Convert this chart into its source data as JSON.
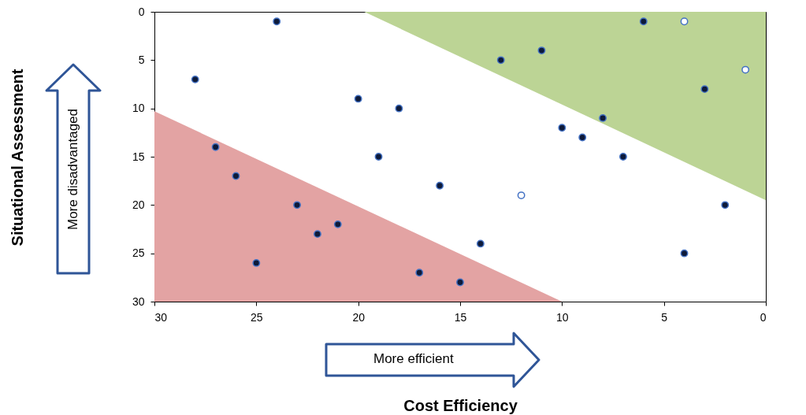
{
  "chart_data": {
    "type": "scatter",
    "xlabel": "Cost Efficiency",
    "annotations": [
      "More efficient",
      "More disadvantaged",
      "Situational Assessment"
    ],
    "xlim": [
      30,
      0
    ],
    "xticks": [
      30,
      25,
      20,
      15,
      10,
      5,
      0
    ],
    "ylim": [
      30,
      0
    ],
    "yticks": [
      0,
      5,
      10,
      15,
      20,
      25,
      30
    ],
    "grid": false,
    "series": [
      {
        "type": "area",
        "color": "#e3a3a3",
        "x": [
          30,
          10
        ],
        "values": [
          10.3,
          30
        ]
      },
      {
        "type": "area",
        "color": "#bcd495",
        "x": [
          19.7,
          0
        ],
        "values": [
          0,
          19.5
        ]
      },
      {
        "color": "#0d1a3a",
        "marker": "circle",
        "x": [
          24,
          28,
          27,
          26,
          20,
          18,
          19,
          23,
          22,
          21,
          25,
          17,
          15,
          16,
          14,
          13,
          11,
          10,
          9,
          8,
          7,
          6,
          3,
          2,
          4
        ],
        "values": [
          1,
          7,
          14,
          17,
          9,
          10,
          15,
          20,
          23,
          22,
          26,
          27,
          28,
          18,
          24,
          5,
          4,
          12,
          13,
          11,
          15,
          1,
          8,
          20,
          25
        ]
      },
      {
        "color": "#ffffff",
        "marker": "circle",
        "x": [
          4,
          1,
          12
        ],
        "values": [
          1,
          6,
          19
        ]
      }
    ]
  }
}
